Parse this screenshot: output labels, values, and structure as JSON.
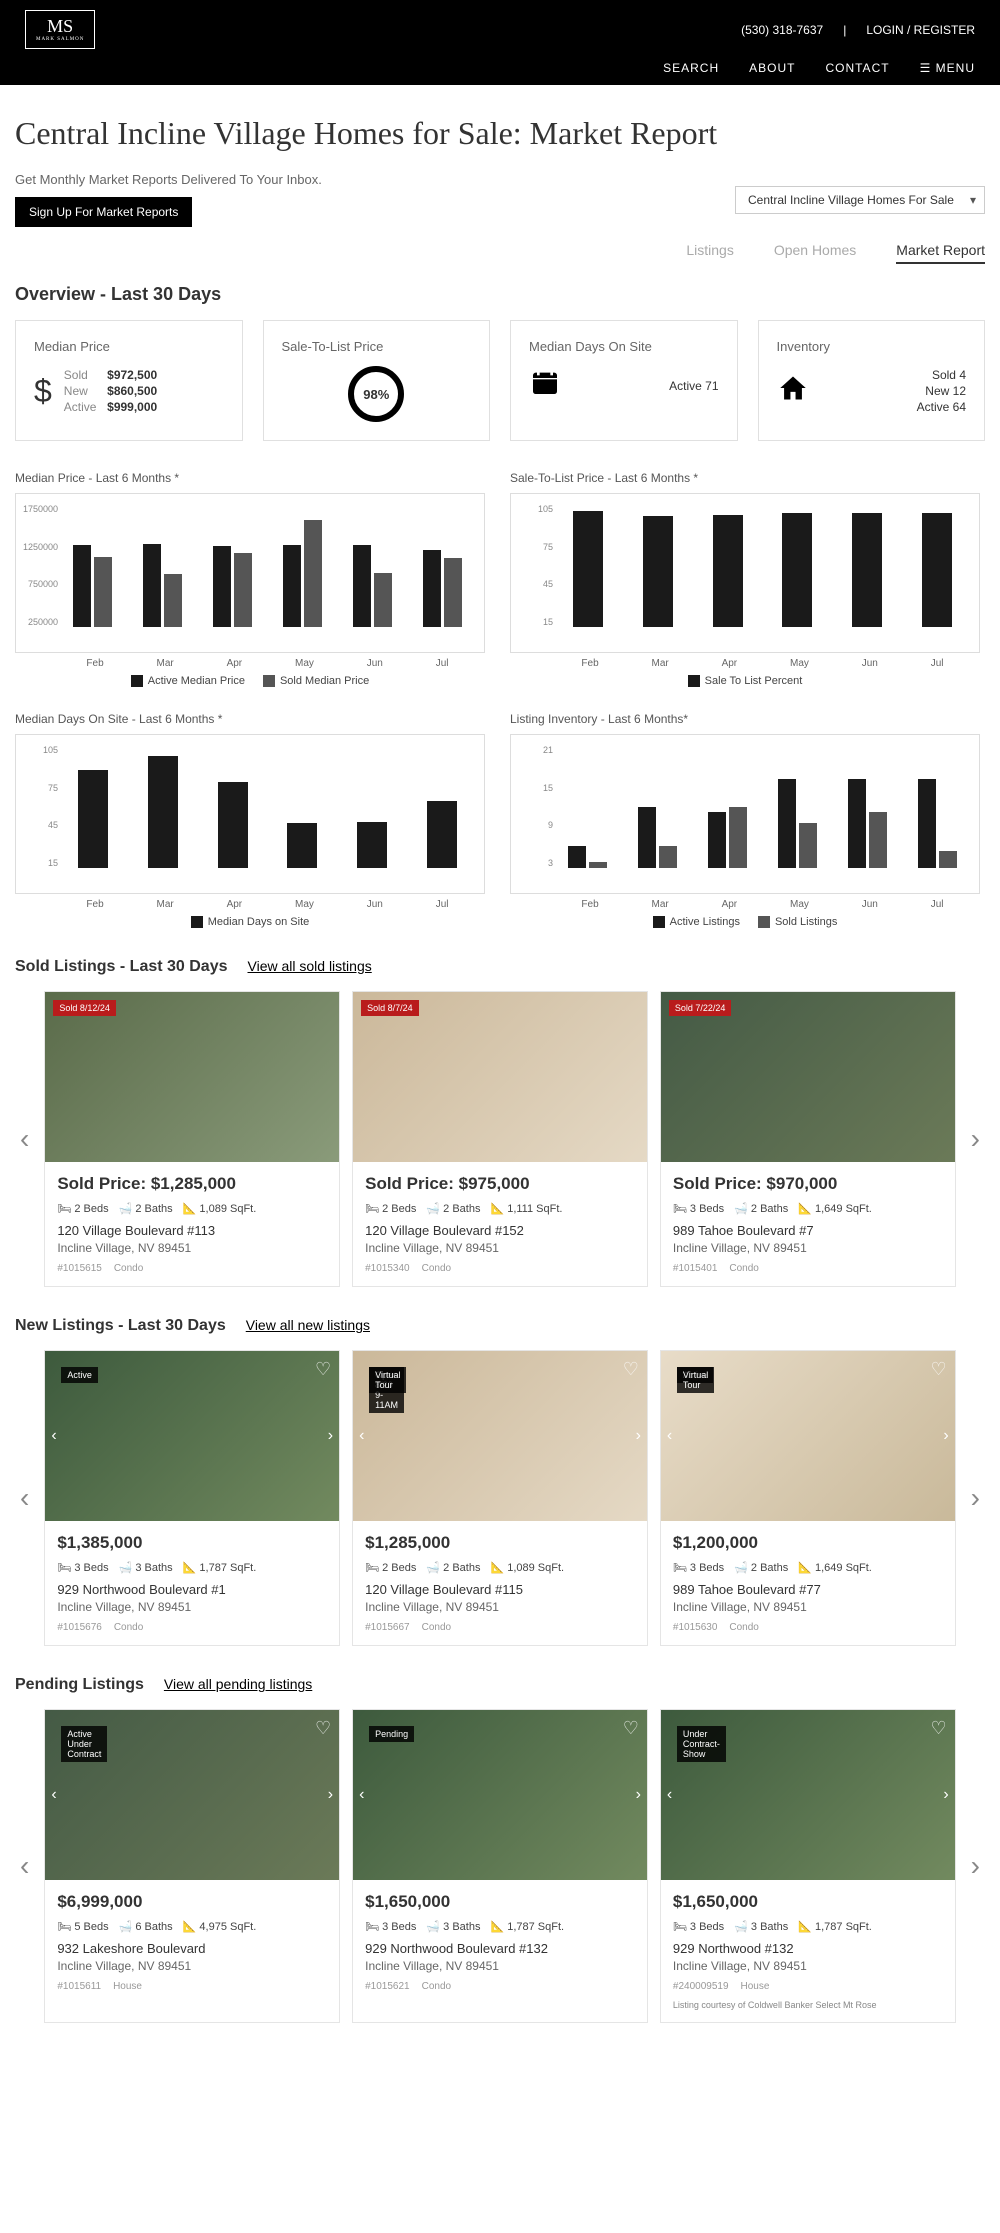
{
  "header": {
    "logo_main": "MS",
    "logo_sub": "MARK SALMON",
    "phone": "(530) 318-7637",
    "login": "LOGIN / REGISTER",
    "nav": [
      "SEARCH",
      "ABOUT",
      "CONTACT",
      "☰ MENU"
    ]
  },
  "page": {
    "title": "Central Incline Village Homes for Sale: Market Report",
    "subtitle": "Get Monthly Market Reports Delivered To Your Inbox.",
    "signup_btn": "Sign Up For Market Reports",
    "dropdown": "Central Incline Village Homes For Sale",
    "tabs": [
      "Listings",
      "Open Homes",
      "Market Report"
    ]
  },
  "overview": {
    "title": "Overview - Last 30 Days",
    "median_price": {
      "title": "Median Price",
      "sold": "$972,500",
      "new": "$860,500",
      "active": "$999,000"
    },
    "sale_to_list": {
      "title": "Sale-To-List Price",
      "pct": "98%"
    },
    "days": {
      "title": "Median Days On Site",
      "active_label": "Active",
      "active": "71"
    },
    "inventory": {
      "title": "Inventory",
      "sold": "4",
      "new": "12",
      "active": "64"
    }
  },
  "charts": {
    "months": [
      "Feb",
      "Mar",
      "Apr",
      "May",
      "Jun",
      "Jul"
    ],
    "colors": {
      "dark": "#1a1a1a",
      "grey": "#555555"
    },
    "c1": {
      "title": "Median Price - Last 6 Months *",
      "yticks": [
        "1750000",
        "1250000",
        "750000",
        "250000"
      ],
      "series": [
        {
          "name": "Active Median Price",
          "color": "#1a1a1a",
          "vals": [
            1170,
            1180,
            1150,
            1160,
            1170,
            1100
          ]
        },
        {
          "name": "Sold Median Price",
          "color": "#555555",
          "vals": [
            1000,
            760,
            1050,
            1520,
            770,
            980
          ]
        }
      ],
      "ymax": 1750
    },
    "c2": {
      "title": "Sale-To-List Price - Last 6 Months *",
      "yticks": [
        "105",
        "75",
        "45",
        "15"
      ],
      "series": [
        {
          "name": "Sale To List Percent",
          "color": "#1a1a1a",
          "vals": [
            99,
            95,
            96,
            97,
            97,
            97
          ]
        }
      ],
      "ymax": 105
    },
    "c3": {
      "title": "Median Days On Site - Last 6 Months *",
      "yticks": [
        "105",
        "75",
        "45",
        "15"
      ],
      "series": [
        {
          "name": "Median Days on Site",
          "color": "#1a1a1a",
          "vals": [
            88,
            100,
            77,
            40,
            41,
            60
          ]
        }
      ],
      "ymax": 110
    },
    "c4": {
      "title": "Listing Inventory - Last 6 Months*",
      "yticks": [
        "21",
        "15",
        "9",
        "3"
      ],
      "series": [
        {
          "name": "Active Listings",
          "color": "#1a1a1a",
          "vals": [
            4,
            11,
            10,
            16,
            16,
            16
          ]
        },
        {
          "name": "Sold Listings",
          "color": "#555555",
          "vals": [
            1,
            4,
            11,
            8,
            10,
            3
          ]
        }
      ],
      "ymax": 22
    }
  },
  "sold": {
    "title": "Sold Listings - Last 30 Days",
    "link": "View all sold listings",
    "items": [
      {
        "badge": "Sold 8/12/24",
        "price": "Sold Price: $1,285,000",
        "beds": "2 Beds",
        "baths": "2 Baths",
        "sqft": "1,089 SqFt.",
        "addr": "120 Village Boulevard #113",
        "city": "Incline Village, NV 89451",
        "mls": "#1015615",
        "type": "Condo",
        "img": "ext"
      },
      {
        "badge": "Sold 8/7/24",
        "price": "Sold Price: $975,000",
        "beds": "2 Beds",
        "baths": "2 Baths",
        "sqft": "1,111 SqFt.",
        "addr": "120 Village Boulevard #152",
        "city": "Incline Village, NV 89451",
        "mls": "#1015340",
        "type": "Condo",
        "img": "interior"
      },
      {
        "badge": "Sold 7/22/24",
        "price": "Sold Price: $970,000",
        "beds": "3 Beds",
        "baths": "2 Baths",
        "sqft": "1,649 SqFt.",
        "addr": "989 Tahoe Boulevard #7",
        "city": "Incline Village, NV 89451",
        "mls": "#1015401",
        "type": "Condo",
        "img": "ext2"
      }
    ]
  },
  "newl": {
    "title": "New Listings - Last 30 Days",
    "link": "View all new listings",
    "items": [
      {
        "badges": [
          "Active"
        ],
        "price": "$1,385,000",
        "beds": "3 Beds",
        "baths": "3 Baths",
        "sqft": "1,787 SqFt.",
        "addr": "929 Northwood Boulevard #1",
        "city": "Incline Village, NV 89451",
        "mls": "#1015676",
        "type": "Condo",
        "img": "ext3"
      },
      {
        "badges": [
          "Open 8/20 9-11AM",
          "Virtual Tour"
        ],
        "price": "$1,285,000",
        "beds": "2 Beds",
        "baths": "2 Baths",
        "sqft": "1,089 SqFt.",
        "addr": "120 Village Boulevard #115",
        "city": "Incline Village, NV 89451",
        "mls": "#1015667",
        "type": "Condo",
        "img": "interior"
      },
      {
        "badges": [
          "Active",
          "Virtual Tour"
        ],
        "price": "$1,200,000",
        "beds": "3 Beds",
        "baths": "2 Baths",
        "sqft": "1,649 SqFt.",
        "addr": "989 Tahoe Boulevard #77",
        "city": "Incline Village, NV 89451",
        "mls": "#1015630",
        "type": "Condo",
        "img": "interior2"
      }
    ]
  },
  "pending": {
    "title": "Pending Listings",
    "link": "View all pending listings",
    "items": [
      {
        "badges": [
          "Active Under Contract"
        ],
        "price": "$6,999,000",
        "beds": "5 Beds",
        "baths": "6 Baths",
        "sqft": "4,975 SqFt.",
        "addr": "932 Lakeshore Boulevard",
        "city": "Incline Village, NV 89451",
        "mls": "#1015611",
        "type": "House",
        "img": "ext2"
      },
      {
        "badges": [
          "Pending"
        ],
        "price": "$1,650,000",
        "beds": "3 Beds",
        "baths": "3 Baths",
        "sqft": "1,787 SqFt.",
        "addr": "929 Northwood Boulevard #132",
        "city": "Incline Village, NV 89451",
        "mls": "#1015621",
        "type": "Condo",
        "img": "ext3"
      },
      {
        "badges": [
          "Under Contract-Show"
        ],
        "price": "$1,650,000",
        "beds": "3 Beds",
        "baths": "3 Baths",
        "sqft": "1,787 SqFt.",
        "addr": "929 Northwood #132",
        "city": "Incline Village, NV 89451",
        "mls": "#240009519",
        "type": "House",
        "img": "ext3",
        "courtesy": "Listing courtesy of Coldwell Banker Select Mt Rose"
      }
    ]
  }
}
